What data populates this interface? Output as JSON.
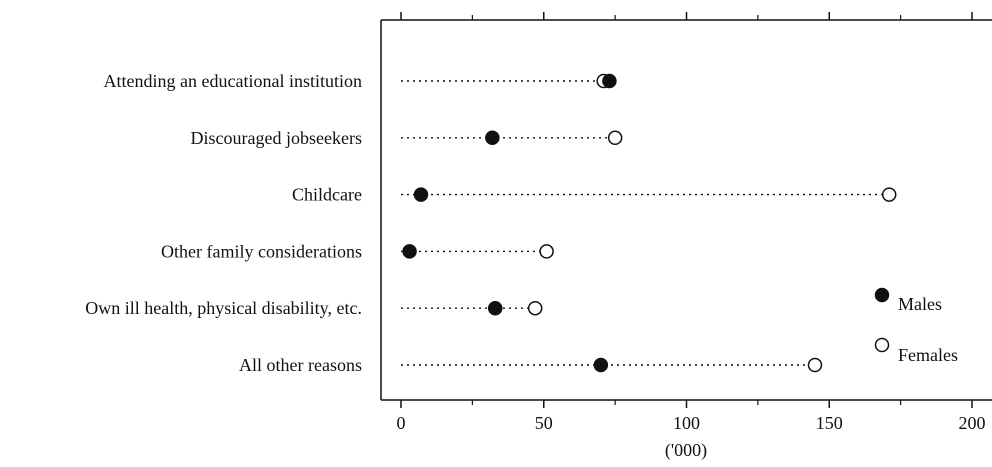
{
  "chart_data": {
    "type": "dot",
    "categories": [
      "Attending an educational institution",
      "Discouraged jobseekers",
      "Childcare",
      "Other family considerations",
      "Own ill health, physical disability, etc.",
      "All other reasons"
    ],
    "series": [
      {
        "name": "Males",
        "marker": "filled-circle",
        "values": [
          73,
          32,
          7,
          3,
          33,
          70
        ]
      },
      {
        "name": "Females",
        "marker": "open-circle",
        "values": [
          71,
          75,
          171,
          51,
          47,
          145
        ]
      }
    ],
    "xlabel": "('000)",
    "xlim": [
      0,
      200
    ],
    "xticks": [
      0,
      50,
      100,
      150,
      200
    ],
    "xtick_labels": [
      "0",
      "50",
      "100",
      "150",
      "200"
    ],
    "grid": false,
    "legend_position": "bottom-right",
    "colors": {
      "ink": "#111111",
      "background": "#ffffff"
    }
  }
}
